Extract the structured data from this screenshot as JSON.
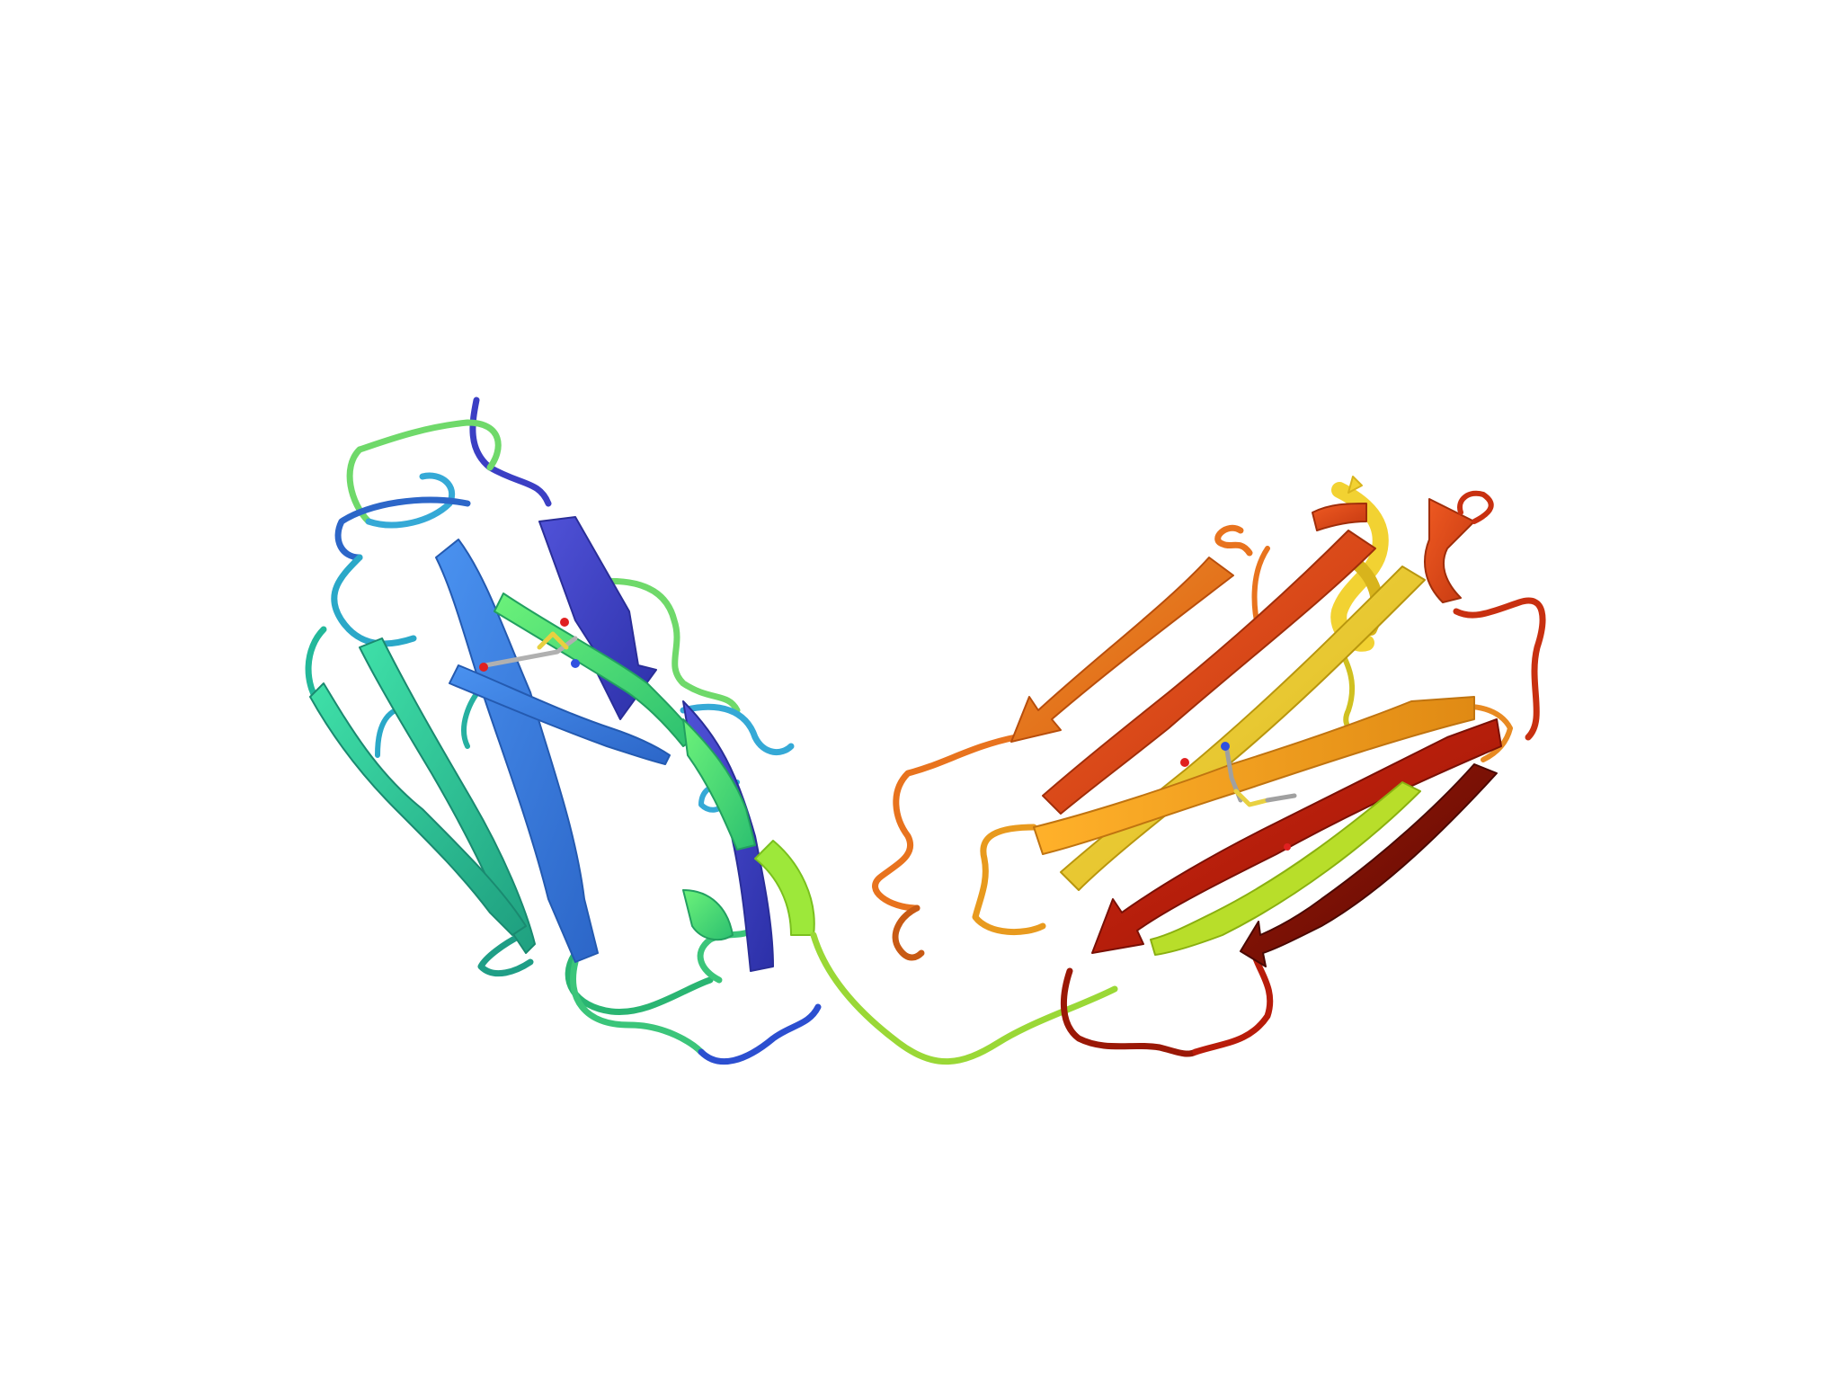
{
  "scene": {
    "background": "#ffffff",
    "subject": "protein-ribbon-cartoon",
    "coloring": "rainbow-n-to-c",
    "palette": {
      "blue_dark": "#3b3fc4",
      "blue": "#3d7fe6",
      "cyan": "#35a9d6",
      "teal": "#2bc6a0",
      "green": "#34d98a",
      "lime": "#a6ee3c",
      "yellow": "#f2d232",
      "orange": "#f5a623",
      "orange_dark": "#e8731e",
      "red_orange": "#e04818",
      "red": "#b81c0a",
      "red_dark": "#7a1005"
    }
  }
}
